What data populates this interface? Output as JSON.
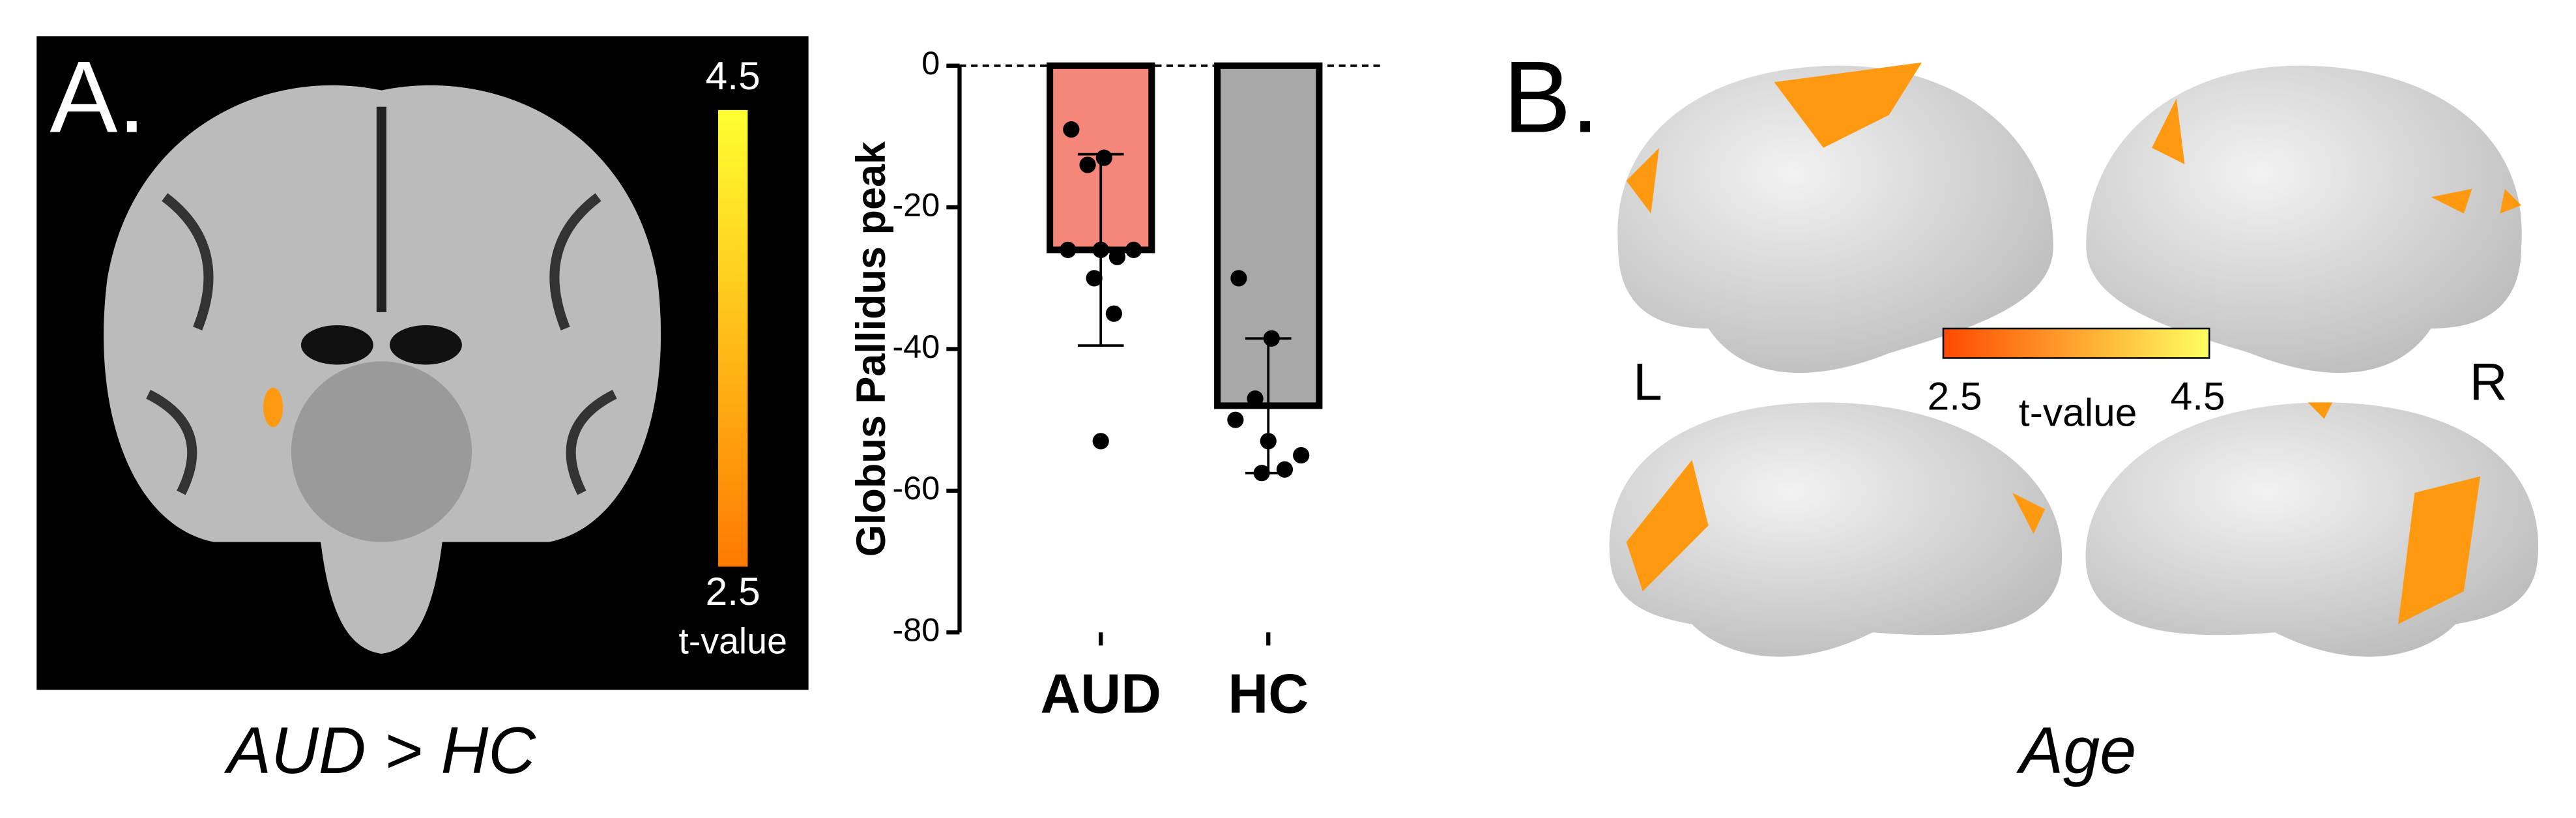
{
  "panel_a": {
    "label": "A.",
    "caption": "AUD > HC",
    "colorbar": {
      "max": 4.5,
      "min": 2.5,
      "label": "t-value"
    }
  },
  "chart_data": {
    "type": "bar",
    "ylabel": "Globus Pallidus peak",
    "categories": [
      "AUD",
      "HC"
    ],
    "values": [
      -26,
      -48
    ],
    "errors": [
      13.5,
      9.5
    ],
    "colors": [
      "#f4877a",
      "#a8a8a8"
    ],
    "points": [
      [
        -9,
        -13,
        -14,
        -26,
        -26,
        -26,
        -27,
        -30,
        -35,
        -53
      ],
      [
        -30,
        -38.5,
        -47,
        -50,
        -53,
        -55,
        -57,
        -57.5
      ]
    ],
    "ylim": [
      -80,
      0
    ],
    "yticks": [
      -80,
      -60,
      -40,
      -20,
      0
    ]
  },
  "panel_b": {
    "label": "B.",
    "caption": "Age",
    "left": "L",
    "right": "R",
    "colorbar": {
      "min": 2.5,
      "max": 4.5,
      "label": "t-value"
    }
  }
}
